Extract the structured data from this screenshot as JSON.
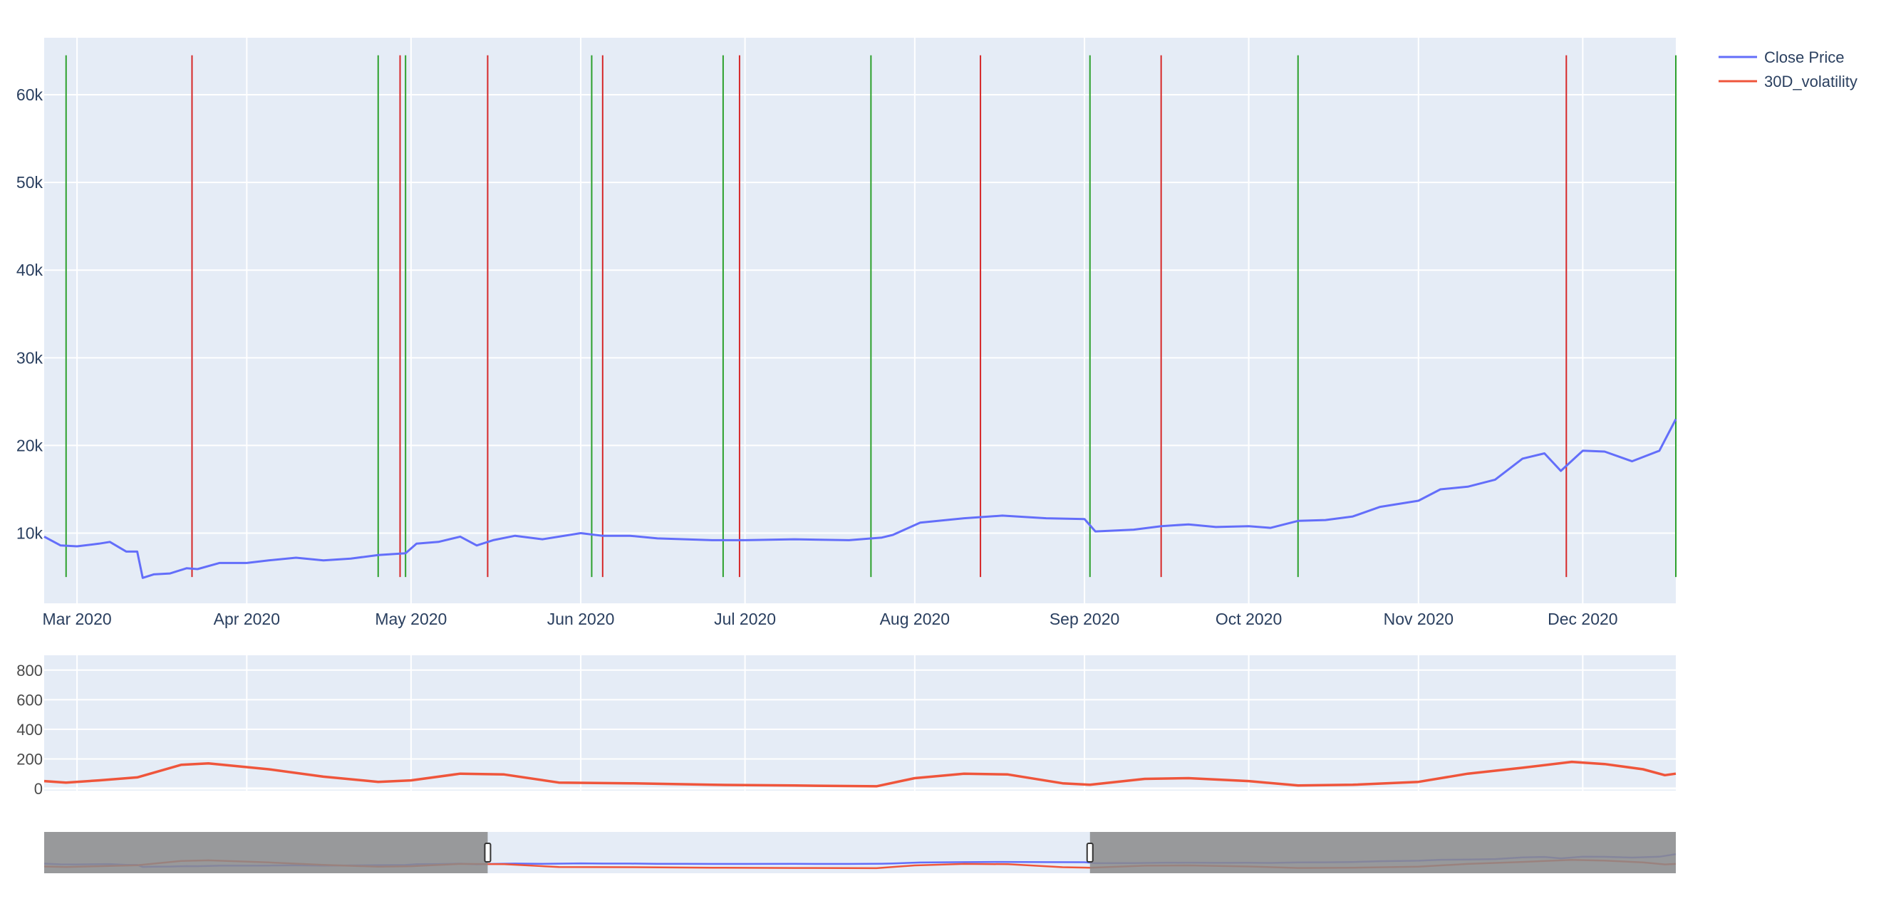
{
  "chart_data": [
    {
      "panel": "main",
      "type": "line",
      "xlim": [
        "2020-02-24",
        "2020-12-18"
      ],
      "ylim": [
        2000,
        66500
      ],
      "x_ticks": [
        {
          "date": "2020-03-01",
          "label": "Mar 2020"
        },
        {
          "date": "2020-04-01",
          "label": "Apr 2020"
        },
        {
          "date": "2020-05-01",
          "label": "May 2020"
        },
        {
          "date": "2020-06-01",
          "label": "Jun 2020"
        },
        {
          "date": "2020-07-01",
          "label": "Jul 2020"
        },
        {
          "date": "2020-08-01",
          "label": "Aug 2020"
        },
        {
          "date": "2020-09-01",
          "label": "Sep 2020"
        },
        {
          "date": "2020-10-01",
          "label": "Oct 2020"
        },
        {
          "date": "2020-11-01",
          "label": "Nov 2020"
        },
        {
          "date": "2020-12-01",
          "label": "Dec 2020"
        }
      ],
      "y_ticks": [
        {
          "value": 10000,
          "label": "10k"
        },
        {
          "value": 20000,
          "label": "20k"
        },
        {
          "value": 30000,
          "label": "30k"
        },
        {
          "value": 40000,
          "label": "40k"
        },
        {
          "value": 50000,
          "label": "50k"
        },
        {
          "value": 60000,
          "label": "60k"
        }
      ],
      "grid": true,
      "legend": "top-right",
      "series": [
        {
          "name": "Close Price",
          "color": "#636efa",
          "x": [
            "2020-02-24",
            "2020-02-27",
            "2020-03-01",
            "2020-03-05",
            "2020-03-07",
            "2020-03-10",
            "2020-03-12",
            "2020-03-13",
            "2020-03-15",
            "2020-03-18",
            "2020-03-21",
            "2020-03-23",
            "2020-03-27",
            "2020-04-01",
            "2020-04-05",
            "2020-04-10",
            "2020-04-15",
            "2020-04-20",
            "2020-04-25",
            "2020-04-30",
            "2020-05-02",
            "2020-05-06",
            "2020-05-10",
            "2020-05-13",
            "2020-05-16",
            "2020-05-20",
            "2020-05-25",
            "2020-06-01",
            "2020-06-05",
            "2020-06-10",
            "2020-06-15",
            "2020-06-20",
            "2020-06-25",
            "2020-07-01",
            "2020-07-10",
            "2020-07-20",
            "2020-07-26",
            "2020-07-28",
            "2020-08-02",
            "2020-08-10",
            "2020-08-17",
            "2020-08-25",
            "2020-09-01",
            "2020-09-03",
            "2020-09-10",
            "2020-09-15",
            "2020-09-20",
            "2020-09-25",
            "2020-10-01",
            "2020-10-05",
            "2020-10-10",
            "2020-10-15",
            "2020-10-20",
            "2020-10-25",
            "2020-11-01",
            "2020-11-05",
            "2020-11-10",
            "2020-11-15",
            "2020-11-20",
            "2020-11-24",
            "2020-11-27",
            "2020-12-01",
            "2020-12-05",
            "2020-12-10",
            "2020-12-15",
            "2020-12-18"
          ],
          "y": [
            9600,
            8600,
            8500,
            8800,
            9000,
            7900,
            7900,
            4900,
            5300,
            5400,
            6000,
            5900,
            6600,
            6600,
            6900,
            7200,
            6900,
            7100,
            7500,
            7700,
            8800,
            9000,
            9600,
            8600,
            9200,
            9700,
            9300,
            10000,
            9700,
            9700,
            9400,
            9300,
            9200,
            9200,
            9300,
            9200,
            9500,
            9800,
            11200,
            11700,
            12000,
            11700,
            11600,
            10200,
            10400,
            10800,
            11000,
            10700,
            10800,
            10600,
            11400,
            11500,
            11900,
            13000,
            13700,
            15000,
            15300,
            16100,
            18500,
            19100,
            17100,
            19400,
            19300,
            18200,
            19400,
            23000
          ]
        }
      ],
      "vlines": [
        {
          "date": "2020-02-28",
          "color": "green"
        },
        {
          "date": "2020-03-22",
          "color": "red"
        },
        {
          "date": "2020-04-25",
          "color": "green"
        },
        {
          "date": "2020-04-29",
          "color": "red"
        },
        {
          "date": "2020-04-30",
          "color": "green"
        },
        {
          "date": "2020-05-15",
          "color": "red"
        },
        {
          "date": "2020-06-03",
          "color": "green"
        },
        {
          "date": "2020-06-05",
          "color": "red"
        },
        {
          "date": "2020-06-27",
          "color": "green"
        },
        {
          "date": "2020-06-30",
          "color": "red"
        },
        {
          "date": "2020-07-24",
          "color": "green"
        },
        {
          "date": "2020-08-13",
          "color": "red"
        },
        {
          "date": "2020-09-02",
          "color": "green"
        },
        {
          "date": "2020-09-15",
          "color": "red"
        },
        {
          "date": "2020-10-10",
          "color": "green"
        },
        {
          "date": "2020-11-28",
          "color": "red"
        },
        {
          "date": "2020-12-18",
          "color": "green"
        }
      ]
    },
    {
      "panel": "volatility",
      "type": "line",
      "xlim": [
        "2020-02-24",
        "2020-12-18"
      ],
      "ylim": [
        0,
        900
      ],
      "y_ticks": [
        {
          "value": 0,
          "label": "0"
        },
        {
          "value": 200,
          "label": "200"
        },
        {
          "value": 400,
          "label": "400"
        },
        {
          "value": 600,
          "label": "600"
        },
        {
          "value": 800,
          "label": "800"
        }
      ],
      "grid": true,
      "series": [
        {
          "name": "30D_volatility",
          "color": "#ef553b",
          "x": [
            "2020-02-24",
            "2020-02-28",
            "2020-03-05",
            "2020-03-12",
            "2020-03-20",
            "2020-03-25",
            "2020-04-05",
            "2020-04-15",
            "2020-04-25",
            "2020-05-01",
            "2020-05-10",
            "2020-05-18",
            "2020-05-28",
            "2020-06-10",
            "2020-06-25",
            "2020-07-10",
            "2020-07-25",
            "2020-08-01",
            "2020-08-10",
            "2020-08-18",
            "2020-08-28",
            "2020-09-02",
            "2020-09-12",
            "2020-09-20",
            "2020-10-01",
            "2020-10-10",
            "2020-10-20",
            "2020-11-01",
            "2020-11-10",
            "2020-11-20",
            "2020-11-29",
            "2020-12-05",
            "2020-12-12",
            "2020-12-16",
            "2020-12-18"
          ],
          "y": [
            50,
            40,
            55,
            75,
            160,
            170,
            130,
            80,
            45,
            55,
            100,
            95,
            40,
            35,
            25,
            20,
            15,
            70,
            100,
            95,
            35,
            25,
            65,
            70,
            50,
            20,
            25,
            45,
            100,
            140,
            180,
            165,
            130,
            90,
            100
          ]
        }
      ]
    }
  ],
  "range_slider": {
    "selected_range": [
      "2020-05-15",
      "2020-09-02"
    ],
    "handle_labels": []
  },
  "legend": {
    "items": [
      {
        "label": "Close Price",
        "color": "#636efa"
      },
      {
        "label": "30D_volatility",
        "color": "#ef553b"
      }
    ]
  },
  "colors": {
    "plot_background": "#e5ecf6",
    "vline_green": "#2ca02c",
    "vline_red": "#d62728",
    "slider_shade": "#8b8b8b",
    "slider_vol": "#c0392b",
    "slider_price": "#3c46a8"
  }
}
